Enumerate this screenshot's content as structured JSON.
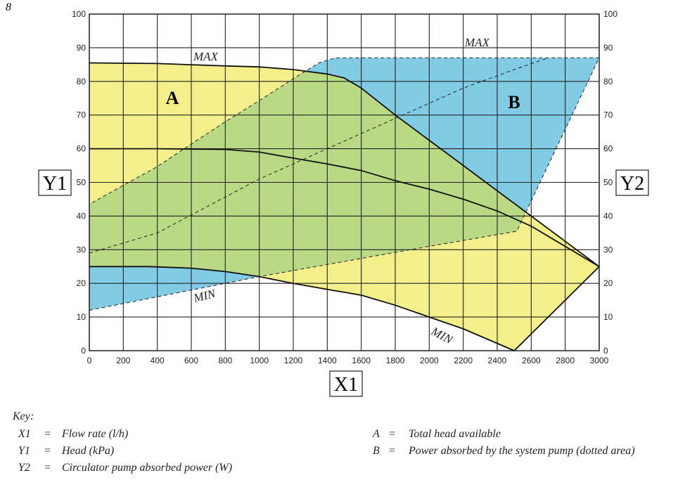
{
  "figure_number": "8",
  "chart_data": {
    "type": "area",
    "x_axis": {
      "label": "X1",
      "range": [
        0,
        3000
      ],
      "ticks": [
        0,
        200,
        400,
        600,
        800,
        1000,
        1200,
        1400,
        1600,
        1800,
        2000,
        2200,
        2400,
        2600,
        2800,
        3000
      ]
    },
    "y_axis_left": {
      "label": "Y1",
      "range": [
        0,
        100
      ],
      "ticks": [
        0,
        10,
        20,
        30,
        40,
        50,
        60,
        70,
        80,
        90,
        100
      ]
    },
    "y_axis_right": {
      "label": "Y2",
      "range": [
        0,
        100
      ],
      "ticks": [
        0,
        10,
        20,
        30,
        40,
        50,
        60,
        70,
        80,
        90,
        100
      ]
    },
    "grid": true,
    "head_curves": [
      {
        "name": "MAX",
        "points": [
          [
            0,
            85.5
          ],
          [
            400,
            85.3
          ],
          [
            800,
            84.6
          ],
          [
            1000,
            84.3
          ],
          [
            1200,
            83.5
          ],
          [
            1400,
            82.2
          ],
          [
            1500,
            81
          ],
          [
            1600,
            78
          ],
          [
            1800,
            70
          ],
          [
            2000,
            62.5
          ],
          [
            2200,
            55
          ],
          [
            2400,
            47.5
          ],
          [
            2600,
            40
          ],
          [
            3000,
            25
          ]
        ]
      },
      {
        "name": "",
        "points": [
          [
            0,
            60
          ],
          [
            400,
            60
          ],
          [
            800,
            59.8
          ],
          [
            1000,
            59
          ],
          [
            1200,
            57.2
          ],
          [
            1400,
            55.5
          ],
          [
            1600,
            53.5
          ],
          [
            1800,
            50.5
          ],
          [
            2000,
            48
          ],
          [
            2200,
            45
          ],
          [
            2400,
            41.5
          ],
          [
            2600,
            37
          ],
          [
            3000,
            25
          ]
        ]
      },
      {
        "name": "MIN",
        "points": [
          [
            0,
            25
          ],
          [
            350,
            25
          ],
          [
            600,
            24.5
          ],
          [
            800,
            23.5
          ],
          [
            1000,
            22
          ],
          [
            1200,
            20
          ],
          [
            1400,
            18.2
          ],
          [
            1600,
            16.5
          ],
          [
            1800,
            13.5
          ],
          [
            2000,
            10
          ],
          [
            2200,
            6.5
          ],
          [
            2500,
            0
          ]
        ]
      }
    ],
    "head_area_closing_line": [
      [
        2500,
        0
      ],
      [
        3000,
        25
      ]
    ],
    "power_curves": [
      {
        "name": "MAX",
        "points": [
          [
            0,
            43.5
          ],
          [
            400,
            54.7
          ],
          [
            600,
            61.4
          ],
          [
            800,
            68
          ],
          [
            1000,
            74.3
          ],
          [
            1200,
            80.8
          ],
          [
            1350,
            85.5
          ],
          [
            1450,
            87
          ],
          [
            1500,
            87
          ],
          [
            3000,
            87
          ]
        ]
      },
      {
        "name": "",
        "points": [
          [
            0,
            29
          ],
          [
            400,
            35
          ],
          [
            1000,
            51
          ],
          [
            1400,
            60
          ],
          [
            1800,
            69
          ],
          [
            2200,
            78
          ],
          [
            2500,
            83.5
          ],
          [
            2700,
            87
          ]
        ]
      },
      {
        "name": "MIN",
        "points": [
          [
            0,
            12
          ],
          [
            1000,
            22
          ],
          [
            2000,
            31
          ],
          [
            2515,
            35.5
          ]
        ]
      }
    ],
    "power_area_right_edge": [
      [
        2515,
        35.5
      ],
      [
        3000,
        87
      ]
    ],
    "region_labels": [
      "A",
      "B"
    ],
    "colors": {
      "area_A": "#f4ef8a",
      "area_B": "#82cbe5",
      "overlap": "#b9d985"
    }
  },
  "key": {
    "title": "Key:",
    "items": [
      {
        "sym": "X1",
        "eq": "=",
        "text": "Flow rate (l/h)"
      },
      {
        "sym": "Y1",
        "eq": "=",
        "text": "Head (kPa)"
      },
      {
        "sym": "Y2",
        "eq": "=",
        "text": "Circulator pump absorbed power (W)"
      },
      {
        "sym": "A",
        "eq": "=",
        "text": "Total head available"
      },
      {
        "sym": "B",
        "eq": "=",
        "text": "Power absorbed by the system pump (dotted area)"
      }
    ]
  }
}
